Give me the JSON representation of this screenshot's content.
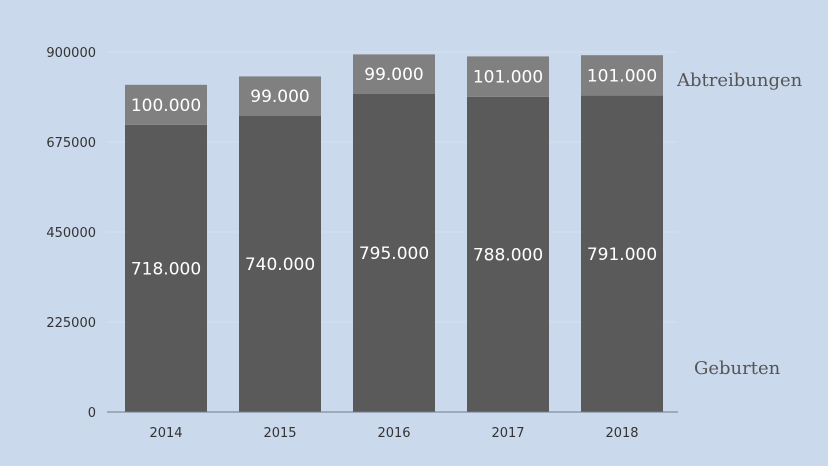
{
  "chart_data": {
    "type": "bar",
    "stacked": true,
    "categories": [
      "2014",
      "2015",
      "2016",
      "2017",
      "2018"
    ],
    "series": [
      {
        "name": "Geburten",
        "values": [
          718000,
          740000,
          795000,
          788000,
          791000
        ],
        "labels": [
          "718.000",
          "740.000",
          "795.000",
          "788.000",
          "791.000"
        ],
        "color": "#5a5a5a"
      },
      {
        "name": "Abtreibungen",
        "values": [
          100000,
          99000,
          99000,
          101000,
          101000
        ],
        "labels": [
          "100.000",
          "99.000",
          "99.000",
          "101.000",
          "101.000"
        ],
        "color": "#808080"
      }
    ],
    "y_ticks": [
      "0",
      "225000",
      "450000",
      "675000",
      "900000"
    ],
    "ylim": [
      0,
      900000
    ],
    "grid": true,
    "legend": "right, inline series labels"
  },
  "colors": {
    "background": "#cbd9ec",
    "axis": "#6f7a8a",
    "grid": "#d6e1ef"
  }
}
